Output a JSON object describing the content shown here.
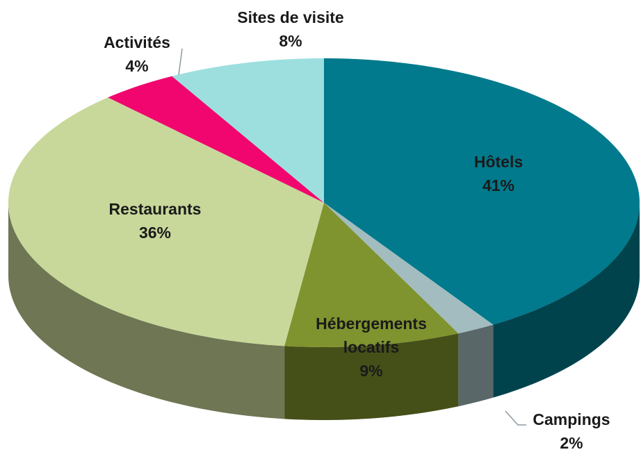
{
  "chart_data": {
    "type": "pie3d",
    "categories": [
      "Hôtels",
      "Campings",
      "Hébergements locatifs",
      "Restaurants",
      "Activités",
      "Sites de visite"
    ],
    "values": [
      41,
      2,
      9,
      36,
      4,
      8
    ],
    "value_labels": [
      "41%",
      "2%",
      "9%",
      "36%",
      "4%",
      "8%"
    ],
    "colors": [
      "#007a8c",
      "#a3bcbf",
      "#7f932f",
      "#c8d89a",
      "#f0066e",
      "#9ddfdf"
    ]
  }
}
